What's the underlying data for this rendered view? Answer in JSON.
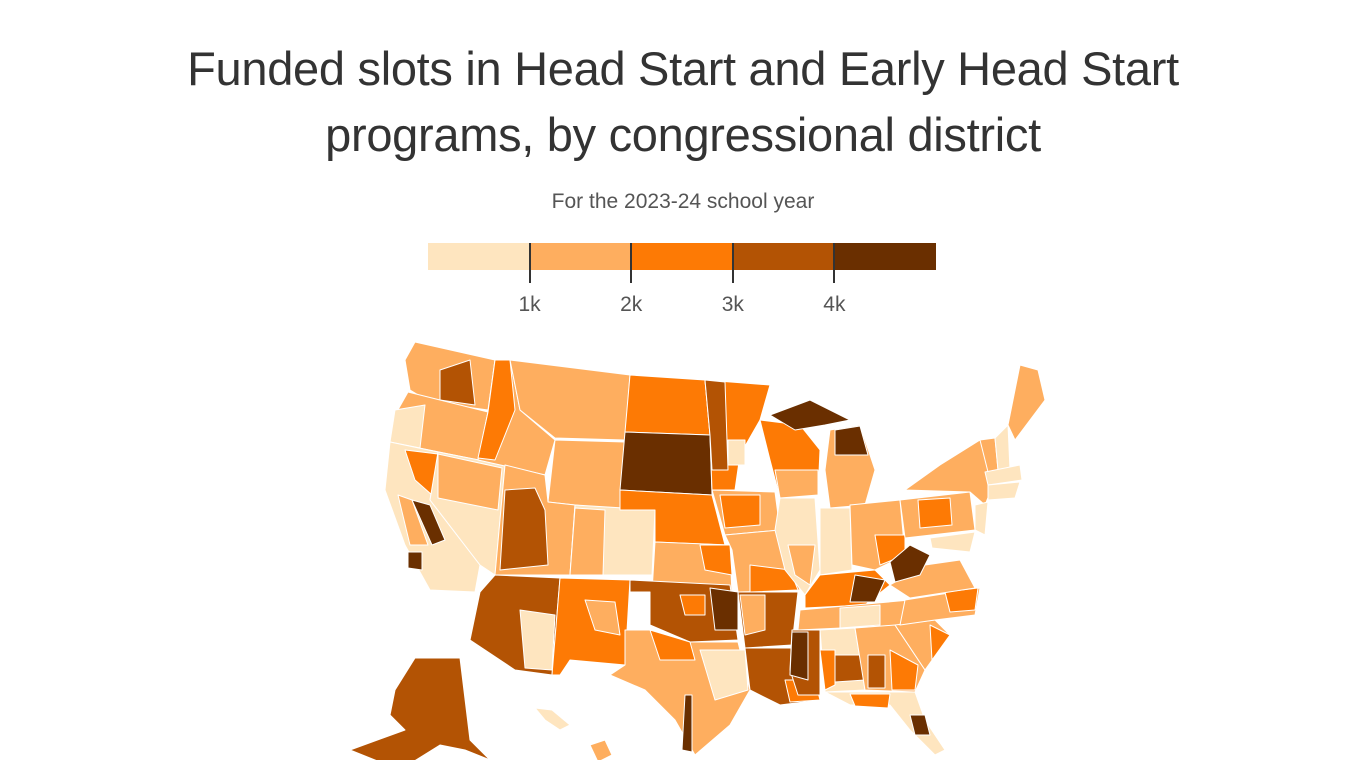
{
  "header": {
    "title_line1": "Funded slots in Head Start and Early Head Start",
    "title_line2": "programs, by congressional district",
    "subtitle": "For the 2023-24 school year"
  },
  "legend": {
    "colors": [
      "#fee5bf",
      "#feae5f",
      "#fd7a05",
      "#b35304",
      "#6a2f00"
    ],
    "ticks": [
      "1k",
      "2k",
      "3k",
      "4k"
    ]
  },
  "chart_data": {
    "type": "choropleth",
    "title": "Funded slots in Head Start and Early Head Start programs, by congressional district",
    "subtitle": "For the 2023-24 school year",
    "geography": "US congressional districts",
    "bins": [
      {
        "range": "<1k",
        "color": "#fee5bf"
      },
      {
        "range": "1k-2k",
        "color": "#feae5f"
      },
      {
        "range": "2k-3k",
        "color": "#fd7a05"
      },
      {
        "range": "3k-4k",
        "color": "#b35304"
      },
      {
        "range": ">4k",
        "color": "#6a2f00"
      }
    ],
    "legend_ticks": [
      "1k",
      "2k",
      "3k",
      "4k"
    ],
    "at_large_states_approx": {
      "Montana": "1k-2k",
      "Wyoming": "1k-2k",
      "North Dakota": "2k-3k",
      "South Dakota": ">4k",
      "Alaska": "3k-4k",
      "Delaware": "1k-2k",
      "Vermont": "1k-2k"
    },
    "notable_districts_approx": [
      {
        "area": "Michigan Upper Peninsula / northern MI",
        "bin": ">4k"
      },
      {
        "area": "Central California (Central Valley)",
        "bin": ">4k"
      },
      {
        "area": "Eastern Kentucky",
        "bin": ">4k"
      },
      {
        "area": "West Virginia",
        "bin": ">4k"
      },
      {
        "area": "Mississippi Delta",
        "bin": ">4k"
      },
      {
        "area": "Eastern Oklahoma",
        "bin": ">4k"
      },
      {
        "area": "South Texas border (Rio Grande Valley)",
        "bin": ">4k"
      },
      {
        "area": "Central Florida",
        "bin": ">4k"
      },
      {
        "area": "Arizona districts",
        "bin": "3k-4k"
      },
      {
        "area": "Utah western district",
        "bin": "3k-4k"
      },
      {
        "area": "New Mexico",
        "bin": "2k-3k"
      },
      {
        "area": "Nebraska",
        "bin": "2k-3k"
      }
    ]
  }
}
